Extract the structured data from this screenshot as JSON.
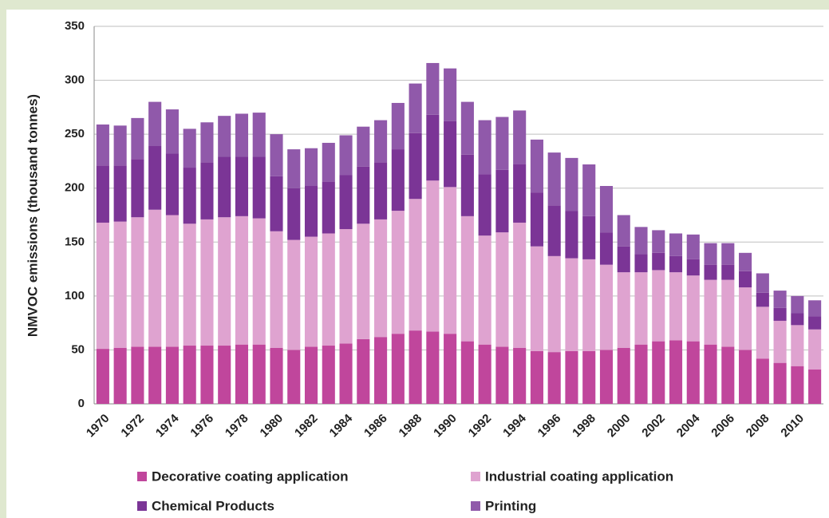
{
  "chart_data": {
    "type": "stacked_bar",
    "y_label": "NMVOC emissions (thousand tonnes)",
    "categories": [
      "1970",
      null,
      "1972",
      null,
      "1974",
      null,
      "1976",
      null,
      "1978",
      null,
      "1980",
      null,
      "1982",
      null,
      "1984",
      null,
      "1986",
      null,
      "1988",
      null,
      "1990",
      null,
      "1992",
      null,
      "1994",
      null,
      "1996",
      null,
      "1998",
      null,
      "2000",
      null,
      "2002",
      null,
      "2004",
      null,
      "2006",
      null,
      "2008",
      null,
      "2010",
      null
    ],
    "series": [
      {
        "name": "Decorative coating application",
        "color": "#c0469c",
        "values": [
          51,
          52,
          53,
          53,
          53,
          54,
          54,
          54,
          55,
          55,
          52,
          50,
          53,
          54,
          56,
          60,
          62,
          65,
          68,
          67,
          65,
          58,
          55,
          53,
          52,
          49,
          48,
          49,
          49,
          50,
          52,
          55,
          58,
          59,
          58,
          55,
          53,
          50,
          42,
          38,
          35,
          32
        ]
      },
      {
        "name": "Industrial coating application",
        "color": "#dfa3d0",
        "values": [
          117,
          117,
          120,
          127,
          122,
          113,
          117,
          119,
          119,
          117,
          108,
          102,
          102,
          104,
          106,
          107,
          109,
          114,
          122,
          140,
          136,
          116,
          101,
          106,
          116,
          97,
          89,
          86,
          85,
          79,
          70,
          67,
          66,
          63,
          61,
          60,
          62,
          58,
          48,
          39,
          38,
          37
        ]
      },
      {
        "name": "Chemical Products",
        "color": "#7b3596",
        "values": [
          53,
          52,
          54,
          59,
          57,
          52,
          53,
          56,
          55,
          57,
          51,
          48,
          47,
          48,
          50,
          53,
          53,
          57,
          61,
          61,
          61,
          57,
          57,
          58,
          54,
          50,
          47,
          44,
          40,
          30,
          24,
          17,
          16,
          15,
          15,
          14,
          14,
          15,
          13,
          12,
          11,
          12
        ]
      },
      {
        "name": "Printing",
        "color": "#9059aa",
        "values": [
          38,
          37,
          38,
          41,
          41,
          36,
          37,
          38,
          40,
          41,
          39,
          36,
          35,
          36,
          37,
          37,
          39,
          43,
          46,
          48,
          49,
          49,
          50,
          49,
          50,
          49,
          49,
          49,
          48,
          43,
          29,
          25,
          21,
          21,
          23,
          20,
          20,
          17,
          18,
          16,
          16,
          15
        ]
      }
    ],
    "ylim": [
      0,
      350
    ],
    "yticks": [
      0,
      50,
      100,
      150,
      200,
      250,
      300,
      350
    ],
    "grid": true
  }
}
